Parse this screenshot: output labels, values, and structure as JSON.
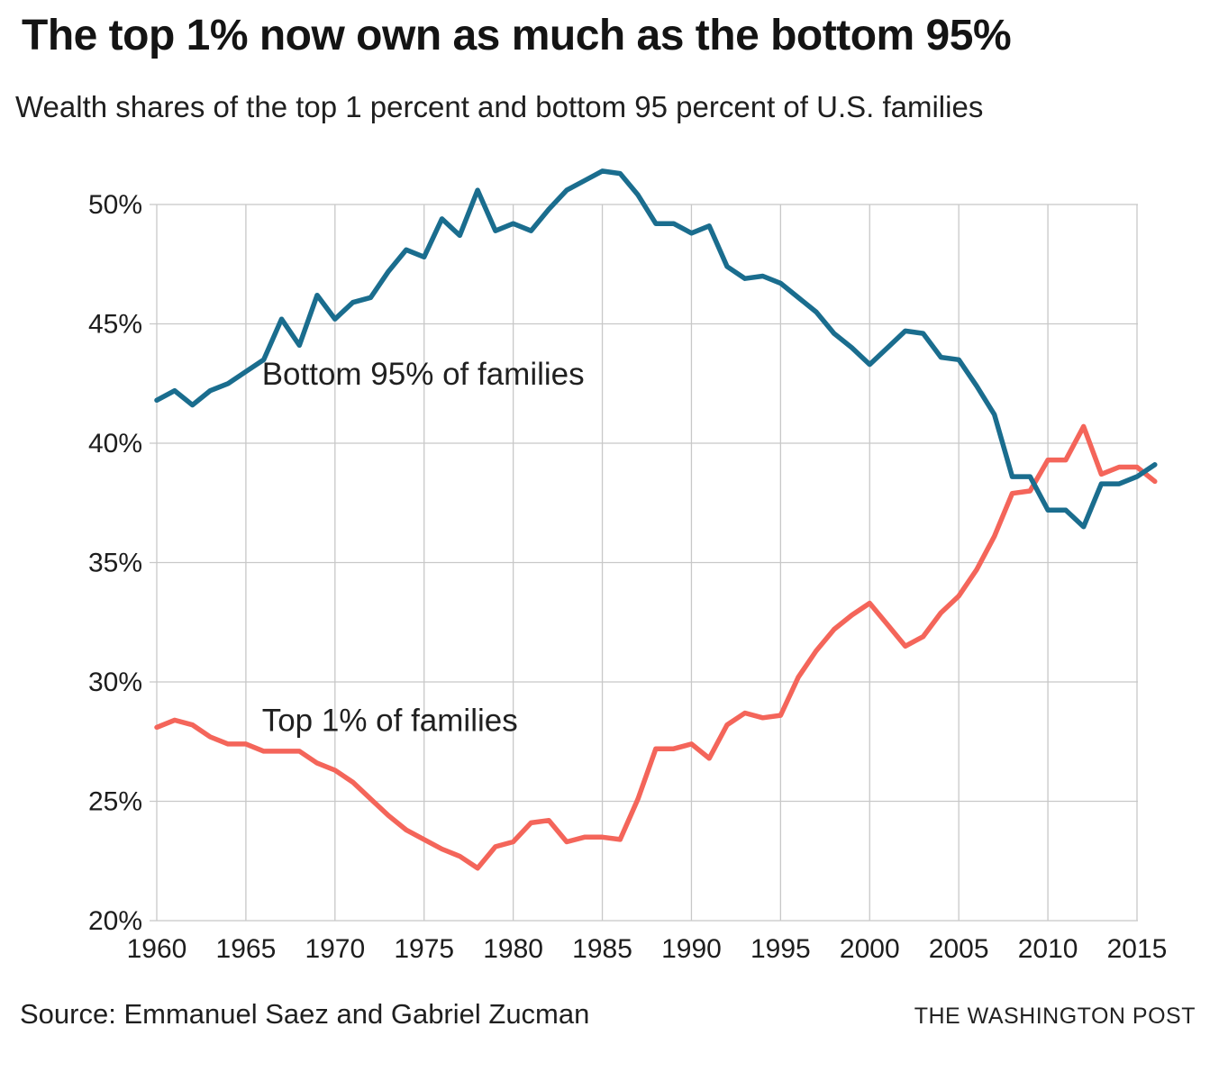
{
  "footer": {
    "source": "Source: Emmanuel Saez and Gabriel Zucman",
    "credit": "THE WASHINGTON POST"
  },
  "chart_data": {
    "type": "line",
    "title": "The top 1% now own as much as the bottom 95%",
    "subtitle": "Wealth shares of the top 1 percent and bottom 95 percent of U.S. families",
    "grid": true,
    "grid_color": "#c8c8c8",
    "text_color": "#1d1d1d",
    "annotation_color": "#202020",
    "legend_position": "inline-labels",
    "x_axis": {
      "grid_min": 1960,
      "grid_max": 2015,
      "ticks": [
        {
          "value": 1960,
          "label": "1960"
        },
        {
          "value": 1965,
          "label": "1965"
        },
        {
          "value": 1970,
          "label": "1970"
        },
        {
          "value": 1975,
          "label": "1975"
        },
        {
          "value": 1980,
          "label": "1980"
        },
        {
          "value": 1985,
          "label": "1985"
        },
        {
          "value": 1990,
          "label": "1990"
        },
        {
          "value": 1995,
          "label": "1995"
        },
        {
          "value": 2000,
          "label": "2000"
        },
        {
          "value": 2005,
          "label": "2005"
        },
        {
          "value": 2010,
          "label": "2010"
        },
        {
          "value": 2015,
          "label": "2015"
        }
      ]
    },
    "y_axis": {
      "grid_min": 20,
      "grid_max": 50,
      "unit": "%",
      "ticks": [
        {
          "value": 50,
          "label": "50%"
        },
        {
          "value": 45,
          "label": "45%"
        },
        {
          "value": 40,
          "label": "40%"
        },
        {
          "value": 35,
          "label": "35%"
        },
        {
          "value": 30,
          "label": "30%"
        },
        {
          "value": 25,
          "label": "25%"
        },
        {
          "value": 20,
          "label": "20%"
        }
      ]
    },
    "years": [
      1960,
      1961,
      1962,
      1963,
      1964,
      1965,
      1966,
      1967,
      1968,
      1969,
      1970,
      1971,
      1972,
      1973,
      1974,
      1975,
      1976,
      1977,
      1978,
      1979,
      1980,
      1981,
      1982,
      1983,
      1984,
      1985,
      1986,
      1987,
      1988,
      1989,
      1990,
      1991,
      1992,
      1993,
      1994,
      1995,
      1996,
      1997,
      1998,
      1999,
      2000,
      2001,
      2002,
      2003,
      2004,
      2005,
      2006,
      2007,
      2008,
      2009,
      2010,
      2011,
      2012,
      2013,
      2014,
      2015,
      2016
    ],
    "series": [
      {
        "name": "Bottom 95% of families",
        "color": "#1a6d8e",
        "values": [
          41.8,
          42.2,
          41.6,
          42.2,
          42.5,
          43.0,
          43.5,
          45.2,
          44.1,
          46.2,
          45.2,
          45.9,
          46.1,
          47.2,
          48.1,
          47.8,
          49.4,
          48.7,
          50.6,
          48.9,
          49.2,
          48.9,
          49.8,
          50.6,
          51.0,
          51.4,
          51.3,
          50.4,
          49.2,
          49.2,
          48.8,
          49.1,
          47.4,
          46.9,
          47.0,
          46.7,
          46.1,
          45.5,
          44.6,
          44.0,
          43.3,
          44.0,
          44.7,
          44.6,
          43.6,
          43.5,
          42.4,
          41.2,
          38.6,
          38.6,
          37.2,
          37.2,
          36.5,
          38.3,
          38.3,
          38.6,
          39.1
        ]
      },
      {
        "name": "Top 1% of families",
        "color": "#f4655a",
        "values": [
          28.1,
          28.4,
          28.2,
          27.7,
          27.4,
          27.4,
          27.1,
          27.1,
          27.1,
          26.6,
          26.3,
          25.8,
          25.1,
          24.4,
          23.8,
          23.4,
          23.0,
          22.7,
          22.2,
          23.1,
          23.3,
          24.1,
          24.2,
          23.3,
          23.5,
          23.5,
          23.4,
          25.1,
          27.2,
          27.2,
          27.4,
          26.8,
          28.2,
          28.7,
          28.5,
          28.6,
          30.2,
          31.3,
          32.2,
          32.8,
          33.3,
          32.4,
          31.5,
          31.9,
          32.9,
          33.6,
          34.7,
          36.1,
          37.9,
          38.0,
          39.3,
          39.3,
          40.7,
          38.7,
          39.0,
          39.0,
          38.4
        ]
      }
    ],
    "annotations": [
      {
        "text": "Bottom 95% of families",
        "year": 1965.9,
        "value": 42.9
      },
      {
        "text": "Top 1% of families",
        "year": 1965.9,
        "value": 28.4
      }
    ]
  }
}
